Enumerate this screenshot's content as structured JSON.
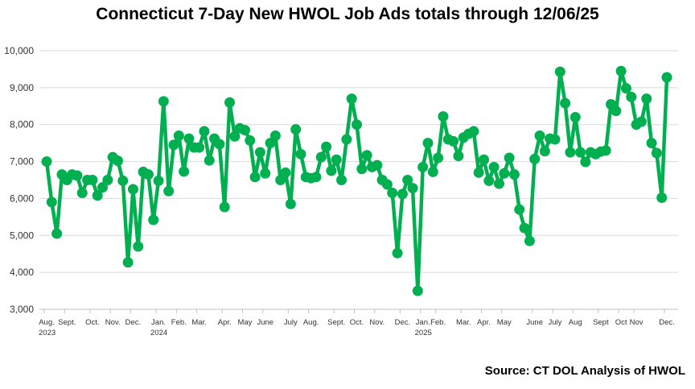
{
  "chart_data": {
    "type": "line",
    "title": "Connecticut 7-Day New HWOL Job Ads totals through 12/06/25",
    "source": "Source: CT DOL Analysis of HWOL",
    "ylim": [
      3000,
      10000
    ],
    "yticks": [
      "3,000",
      "4,000",
      "5,000",
      "6,000",
      "7,000",
      "8,000",
      "9,000",
      "10,000"
    ],
    "grid": true,
    "color": "#00B050",
    "xlabels": [
      {
        "label": "Aug.",
        "sub": "2023",
        "i": 0
      },
      {
        "label": "Sept.",
        "i": 4
      },
      {
        "label": "Oct.",
        "i": 9
      },
      {
        "label": "Nov.",
        "i": 13
      },
      {
        "label": "Dec.",
        "i": 17
      },
      {
        "label": "Jan.",
        "sub": "2024",
        "i": 22
      },
      {
        "label": "Feb.",
        "i": 26
      },
      {
        "label": "Mar.",
        "i": 30
      },
      {
        "label": "Apr.",
        "i": 35
      },
      {
        "label": "May",
        "i": 39
      },
      {
        "label": "June",
        "i": 43
      },
      {
        "label": "July",
        "i": 48
      },
      {
        "label": "Aug.",
        "i": 52
      },
      {
        "label": "Sept.",
        "i": 57
      },
      {
        "label": "Oct.",
        "i": 61
      },
      {
        "label": "Nov.",
        "i": 65
      },
      {
        "label": "Dec.",
        "i": 70
      },
      {
        "label": "Jan.",
        "sub": "2025",
        "i": 74
      },
      {
        "label": "Feb.",
        "i": 77
      },
      {
        "label": "Mar.",
        "i": 82
      },
      {
        "label": "Apr.",
        "i": 86
      },
      {
        "label": "May",
        "i": 90
      },
      {
        "label": "June",
        "i": 96
      },
      {
        "label": "July",
        "i": 100
      },
      {
        "label": "Aug",
        "i": 104
      },
      {
        "label": "Sept",
        "i": 109
      },
      {
        "label": "Oct",
        "i": 113
      },
      {
        "label": "Nov",
        "i": 116
      },
      {
        "label": "Dec.",
        "i": 122
      }
    ],
    "values": [
      7000,
      5900,
      5050,
      6650,
      6500,
      6650,
      6620,
      6150,
      6500,
      6500,
      6080,
      6300,
      6500,
      7120,
      7020,
      6480,
      4270,
      6250,
      4700,
      6720,
      6650,
      5420,
      6480,
      8630,
      6200,
      7450,
      7700,
      6730,
      7620,
      7380,
      7380,
      7820,
      7030,
      7620,
      7470,
      5770,
      8600,
      7680,
      7900,
      7850,
      7570,
      6580,
      7250,
      6680,
      7500,
      7700,
      6500,
      6700,
      5850,
      7870,
      7200,
      6580,
      6550,
      6580,
      7120,
      7400,
      6750,
      7050,
      6500,
      7600,
      8700,
      8000,
      6800,
      7170,
      6850,
      6900,
      6500,
      6380,
      6150,
      4520,
      6120,
      6500,
      6280,
      3500,
      6850,
      7500,
      6720,
      7100,
      8220,
      7600,
      7550,
      7150,
      7650,
      7750,
      7820,
      6700,
      7050,
      6480,
      6850,
      6400,
      6680,
      7100,
      6650,
      5700,
      5200,
      4850,
      7070,
      7700,
      7280,
      7620,
      7600,
      9430,
      8580,
      7250,
      8200,
      7250,
      6990,
      7250,
      7200,
      7270,
      7300,
      8550,
      8370,
      9450,
      8980,
      8750,
      8000,
      8080,
      8700,
      7500,
      7230,
      6020,
      9280
    ]
  }
}
